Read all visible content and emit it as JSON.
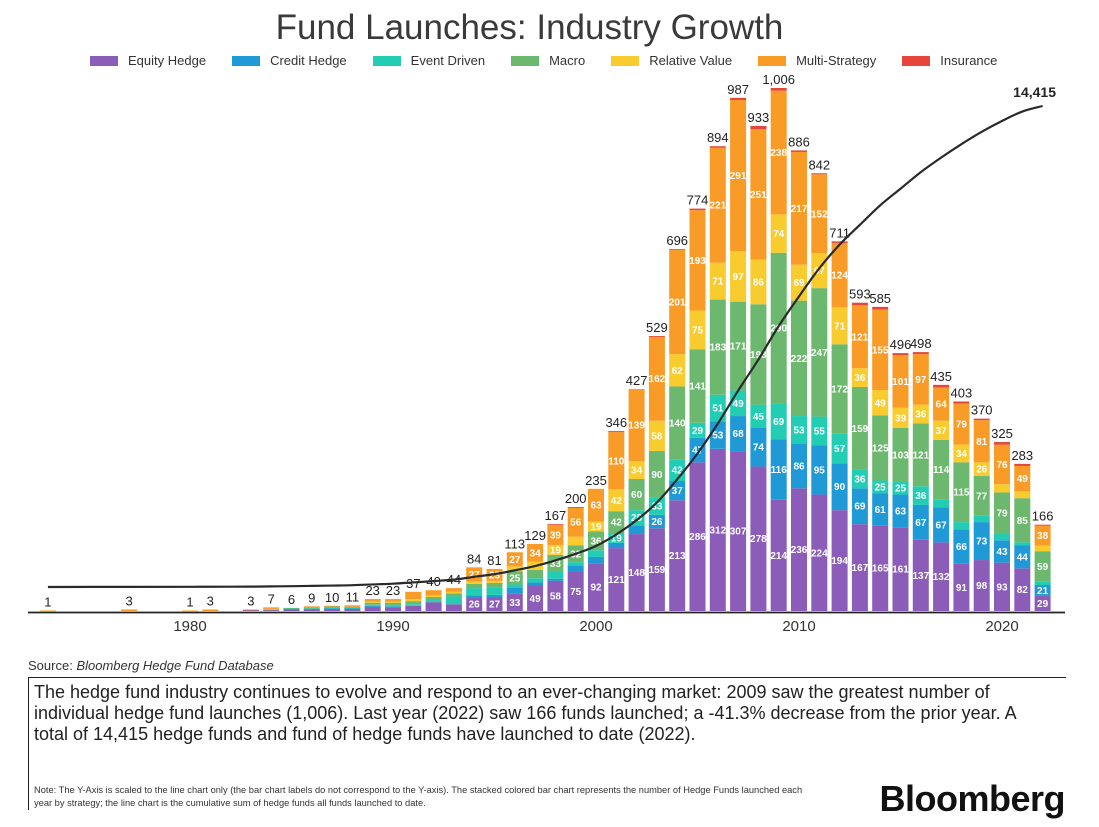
{
  "chart_data": {
    "type": "bar",
    "title": "Fund Launches: Industry Growth",
    "xlabel": "",
    "ylabel": "",
    "x_ticks": [
      "1980",
      "1990",
      "2000",
      "2010",
      "2020"
    ],
    "legend_placement": "top",
    "grid": false,
    "series_names": [
      "Equity Hedge",
      "Credit Hedge",
      "Event Driven",
      "Macro",
      "Relative Value",
      "Multi-Strategy",
      "Insurance"
    ],
    "series_colors": [
      "#8b5db8",
      "#1f9ad6",
      "#22cdb4",
      "#6cb86e",
      "#f8cb2e",
      "#f89b27",
      "#e5453b"
    ],
    "years": [
      1973,
      1977,
      1980,
      1981,
      1983,
      1984,
      1985,
      1986,
      1987,
      1988,
      1989,
      1990,
      1991,
      1992,
      1993,
      1994,
      1995,
      1996,
      1997,
      1998,
      1999,
      2000,
      2001,
      2002,
      2003,
      2004,
      2005,
      2006,
      2007,
      2008,
      2009,
      2010,
      2011,
      2012,
      2013,
      2014,
      2015,
      2016,
      2017,
      2018,
      2019,
      2020,
      2021,
      2022
    ],
    "stacks": [
      [
        0,
        0,
        0,
        0,
        0,
        1,
        0
      ],
      [
        0,
        0,
        0,
        0,
        0,
        3,
        0
      ],
      [
        0,
        0,
        0,
        0,
        0,
        1,
        0
      ],
      [
        0,
        0,
        0,
        0,
        0,
        3,
        0
      ],
      [
        2,
        0,
        0,
        0,
        0,
        1,
        0
      ],
      [
        2,
        0,
        0,
        1,
        1,
        3,
        0
      ],
      [
        3,
        1,
        1,
        1,
        0,
        0,
        0
      ],
      [
        3,
        1,
        1,
        2,
        0,
        2,
        0
      ],
      [
        4,
        1,
        2,
        2,
        0,
        1,
        0
      ],
      [
        4,
        1,
        1,
        2,
        0,
        3,
        0
      ],
      [
        8,
        2,
        2,
        4,
        2,
        5,
        0
      ],
      [
        7,
        2,
        2,
        5,
        2,
        5,
        0
      ],
      [
        10,
        0,
        3,
        6,
        4,
        14,
        0
      ],
      [
        17,
        0,
        4,
        6,
        3,
        10,
        0
      ],
      [
        13,
        0,
        15,
        6,
        3,
        7,
        0
      ],
      [
        26,
        4,
        14,
        8,
        5,
        27,
        0
      ],
      [
        27,
        4,
        15,
        8,
        4,
        23,
        0
      ],
      [
        33,
        12,
        6,
        25,
        10,
        27,
        0
      ],
      [
        49,
        6,
        8,
        16,
        16,
        34,
        0
      ],
      [
        58,
        4,
        13,
        33,
        19,
        39,
        1
      ],
      [
        75,
        13,
        6,
        32,
        17,
        56,
        1
      ],
      [
        92,
        12,
        13,
        36,
        19,
        63,
        0
      ],
      [
        121,
        10,
        19,
        42,
        42,
        110,
        2
      ],
      [
        148,
        17,
        29,
        60,
        34,
        139,
        0
      ],
      [
        159,
        26,
        33,
        90,
        58,
        162,
        1
      ],
      [
        213,
        37,
        42,
        140,
        62,
        201,
        1
      ],
      [
        286,
        47,
        29,
        141,
        75,
        193,
        3
      ],
      [
        312,
        53,
        51,
        183,
        71,
        221,
        3
      ],
      [
        307,
        68,
        49,
        171,
        97,
        291,
        4
      ],
      [
        278,
        74,
        45,
        193,
        86,
        251,
        6
      ],
      [
        214,
        116,
        69,
        290,
        74,
        238,
        5
      ],
      [
        236,
        86,
        53,
        222,
        69,
        217,
        3
      ],
      [
        224,
        95,
        55,
        247,
        67,
        152,
        2
      ],
      [
        194,
        90,
        57,
        172,
        71,
        124,
        3
      ],
      [
        167,
        69,
        36,
        159,
        36,
        121,
        5
      ],
      [
        165,
        61,
        25,
        125,
        49,
        155,
        5
      ],
      [
        161,
        63,
        25,
        103,
        39,
        101,
        4
      ],
      [
        137,
        67,
        36,
        121,
        36,
        97,
        4
      ],
      [
        132,
        67,
        16,
        114,
        37,
        64,
        5
      ],
      [
        91,
        66,
        14,
        115,
        34,
        79,
        4
      ],
      [
        98,
        73,
        12,
        77,
        26,
        81,
        3
      ],
      [
        93,
        43,
        13,
        79,
        16,
        76,
        5
      ],
      [
        82,
        44,
        6,
        85,
        13,
        49,
        4
      ],
      [
        29,
        21,
        6,
        59,
        11,
        38,
        2
      ]
    ],
    "totals": [
      "1",
      "3",
      "1",
      "3",
      "3",
      "7",
      "6",
      "9",
      "10",
      "11",
      "23",
      "23",
      "37",
      "40",
      "44",
      "84",
      "81",
      "113",
      "129",
      "167",
      "200",
      "235",
      "346",
      "427",
      "529",
      "696",
      "774",
      "894",
      "987",
      "933",
      "1,006",
      "886",
      "842",
      "711",
      "593",
      "585",
      "496",
      "498",
      "435",
      "403",
      "370",
      "325",
      "283",
      "166"
    ],
    "line": {
      "name": "Cumulative launches",
      "final_label": "14,415",
      "final_value": 14415
    }
  },
  "source": {
    "label": "Source:",
    "name": "Bloomberg Hedge Fund Database"
  },
  "summary": "The hedge fund industry continues to evolve and respond to an ever-changing market: 2009 saw the greatest number of individual hedge fund launches (1,006). Last year (2022) saw 166 funds launched; a -41.3% decrease from the prior year. A total of 14,415 hedge funds and fund of hedge funds have launched to date (2022).",
  "note": "Note: The Y-Axis is scaled to the line chart only (the bar chart labels do not correspond to the Y-axis). The stacked colored bar chart represents the number of Hedge Funds launched each year by strategy; the line chart is the cumulative sum of hedge funds all funds launched to date.",
  "logo": "Bloomberg"
}
